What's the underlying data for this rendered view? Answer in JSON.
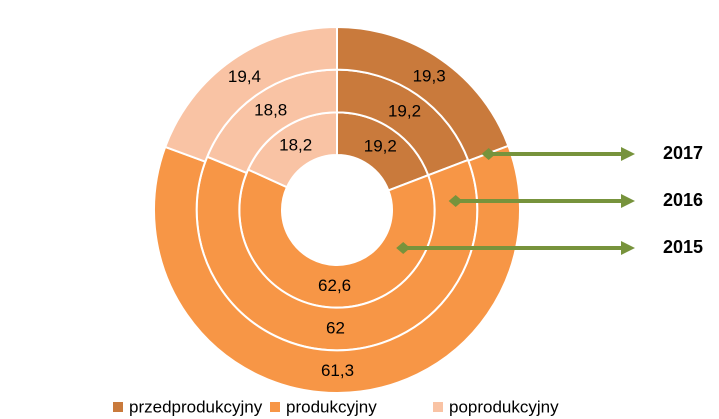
{
  "chart_data": {
    "type": "donut",
    "categories": [
      "przedprodukcyjny",
      "produkcyjny",
      "poprodukcyjny"
    ],
    "colors": [
      "#c97a3c",
      "#f79646",
      "#f9c3a4"
    ],
    "series": [
      {
        "name": "2015",
        "values": [
          19.2,
          62.6,
          18.2
        ],
        "value_labels": [
          "19,2",
          "62,6",
          "18,2"
        ]
      },
      {
        "name": "2016",
        "values": [
          19.2,
          62,
          18.8
        ],
        "value_labels": [
          "19,2",
          "62",
          "18,8"
        ]
      },
      {
        "name": "2017",
        "values": [
          19.3,
          61.3,
          19.4
        ],
        "value_labels": [
          "19,3",
          "61,3",
          "19,4"
        ]
      }
    ],
    "annotation_color": "#77933c"
  }
}
